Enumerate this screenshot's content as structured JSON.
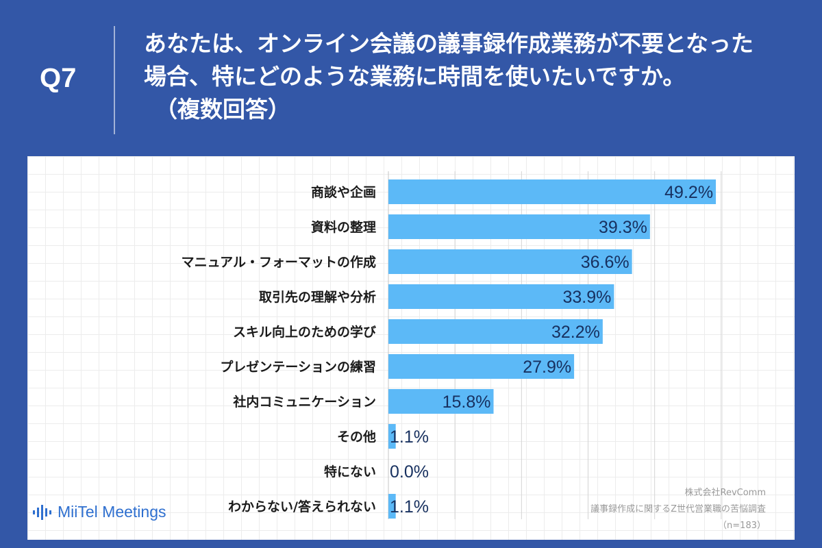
{
  "question": {
    "number": "Q7",
    "lines": [
      "あなたは、オンライン会議の議事録作成業務が不要となった",
      "場合、特にどのような業務に時間を使いたいですか。",
      "（複数回答）"
    ]
  },
  "brand": {
    "logo_text": "MiiTel Meetings",
    "logo_color": "#2e6fcf"
  },
  "source": {
    "company": "株式会社RevComm",
    "survey": "議事録作成に関するZ世代営業職の苦悩調査",
    "sample": "（n=183）"
  },
  "colors": {
    "background": "#3357a7",
    "bar": "#5cb9f7",
    "value_text": "#17305f"
  },
  "chart_data": {
    "type": "bar",
    "orientation": "horizontal",
    "title": "あなたは、オンライン会議の議事録作成業務が不要となった場合、特にどのような業務に時間を使いたいですか。（複数回答）",
    "xlabel": "",
    "ylabel": "",
    "xlim": [
      0,
      60
    ],
    "grid": true,
    "categories": [
      "商談や企画",
      "資料の整理",
      "マニュアル・フォーマットの作成",
      "取引先の理解や分析",
      "スキル向上のための学び",
      "プレゼンテーションの練習",
      "社内コミュニケーション",
      "その他",
      "特にない",
      "わからない/答えられない"
    ],
    "values": [
      49.2,
      39.3,
      36.6,
      33.9,
      32.2,
      27.9,
      15.8,
      1.1,
      0.0,
      1.1
    ],
    "value_labels": [
      "49.2%",
      "39.3%",
      "36.6%",
      "33.9%",
      "32.2%",
      "27.9%",
      "15.8%",
      "1.1%",
      "0.0%",
      "1.1%"
    ]
  }
}
